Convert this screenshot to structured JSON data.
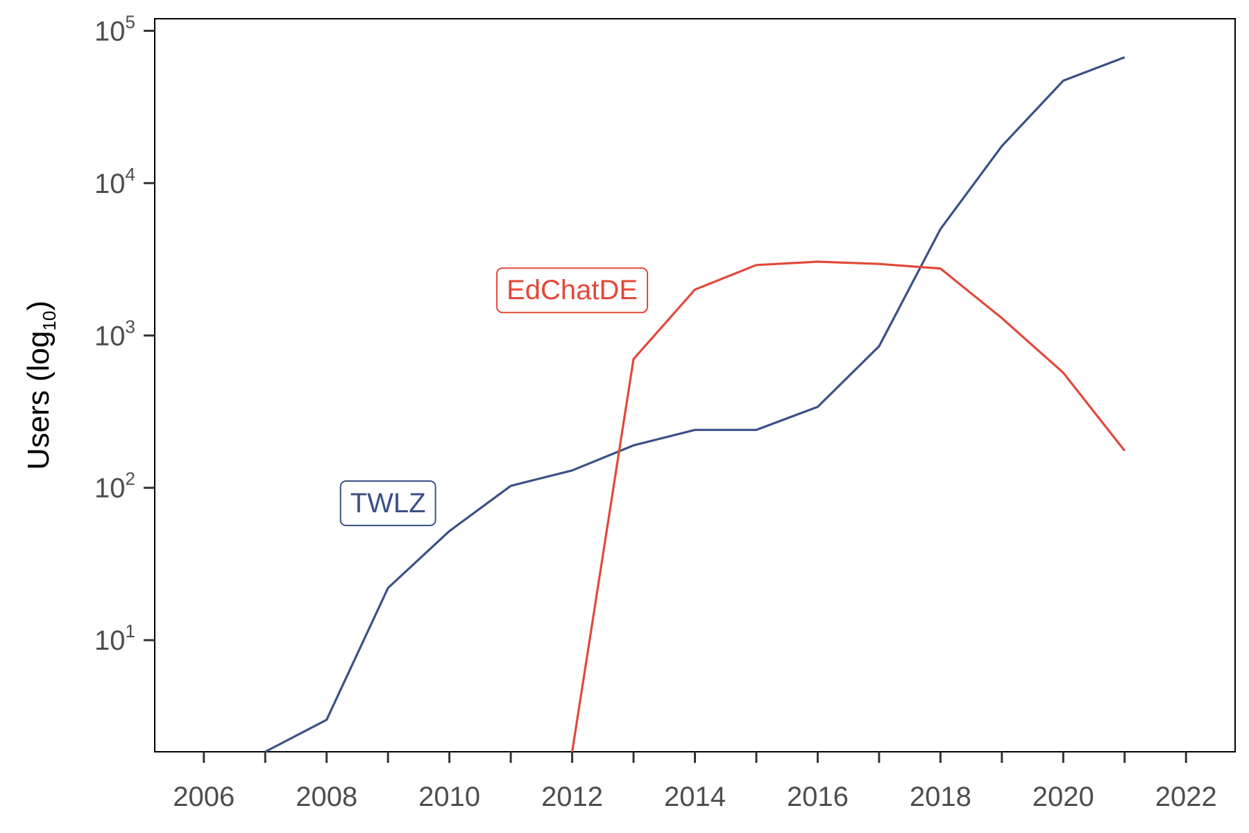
{
  "chart_data": {
    "type": "line",
    "title": "",
    "xlabel": "",
    "ylabel": "Users (log",
    "ylabel_sub": "10",
    "ylabel_close": ")",
    "y_scale": "log10",
    "xlim": [
      2005.2,
      2022.8
    ],
    "ylim": [
      1.85,
      120000
    ],
    "x_ticks": [
      2006,
      2008,
      2010,
      2012,
      2014,
      2016,
      2018,
      2020,
      2022
    ],
    "x_minor_ticks": [
      2007,
      2009,
      2011,
      2013,
      2015,
      2017,
      2019,
      2021
    ],
    "y_ticks": [
      {
        "value": 10,
        "base": "10",
        "exp": "1"
      },
      {
        "value": 100,
        "base": "10",
        "exp": "2"
      },
      {
        "value": 1000,
        "base": "10",
        "exp": "3"
      },
      {
        "value": 10000,
        "base": "10",
        "exp": "4"
      },
      {
        "value": 100000,
        "base": "10",
        "exp": "5"
      }
    ],
    "grid": false,
    "legend": "direct labels",
    "series": [
      {
        "name": "TWLZ",
        "color": "#3a5186",
        "label_at": [
          2009,
          80
        ],
        "points": [
          [
            2007,
            1.85
          ],
          [
            2008,
            3
          ],
          [
            2009,
            22
          ],
          [
            2010,
            52
          ],
          [
            2011,
            103
          ],
          [
            2012,
            130
          ],
          [
            2013,
            190
          ],
          [
            2014,
            240
          ],
          [
            2015,
            240
          ],
          [
            2016,
            340
          ],
          [
            2017,
            850
          ],
          [
            2018,
            5000
          ],
          [
            2019,
            17500
          ],
          [
            2020,
            47000
          ],
          [
            2021,
            67000
          ]
        ]
      },
      {
        "name": "EdChatDE",
        "color": "#e2483a",
        "label_at": [
          2012,
          2000
        ],
        "points": [
          [
            2012,
            1.85
          ],
          [
            2013,
            700
          ],
          [
            2014,
            2000
          ],
          [
            2015,
            2900
          ],
          [
            2016,
            3050
          ],
          [
            2017,
            2950
          ],
          [
            2018,
            2750
          ],
          [
            2019,
            1300
          ],
          [
            2020,
            570
          ],
          [
            2021,
            175
          ]
        ]
      }
    ]
  }
}
